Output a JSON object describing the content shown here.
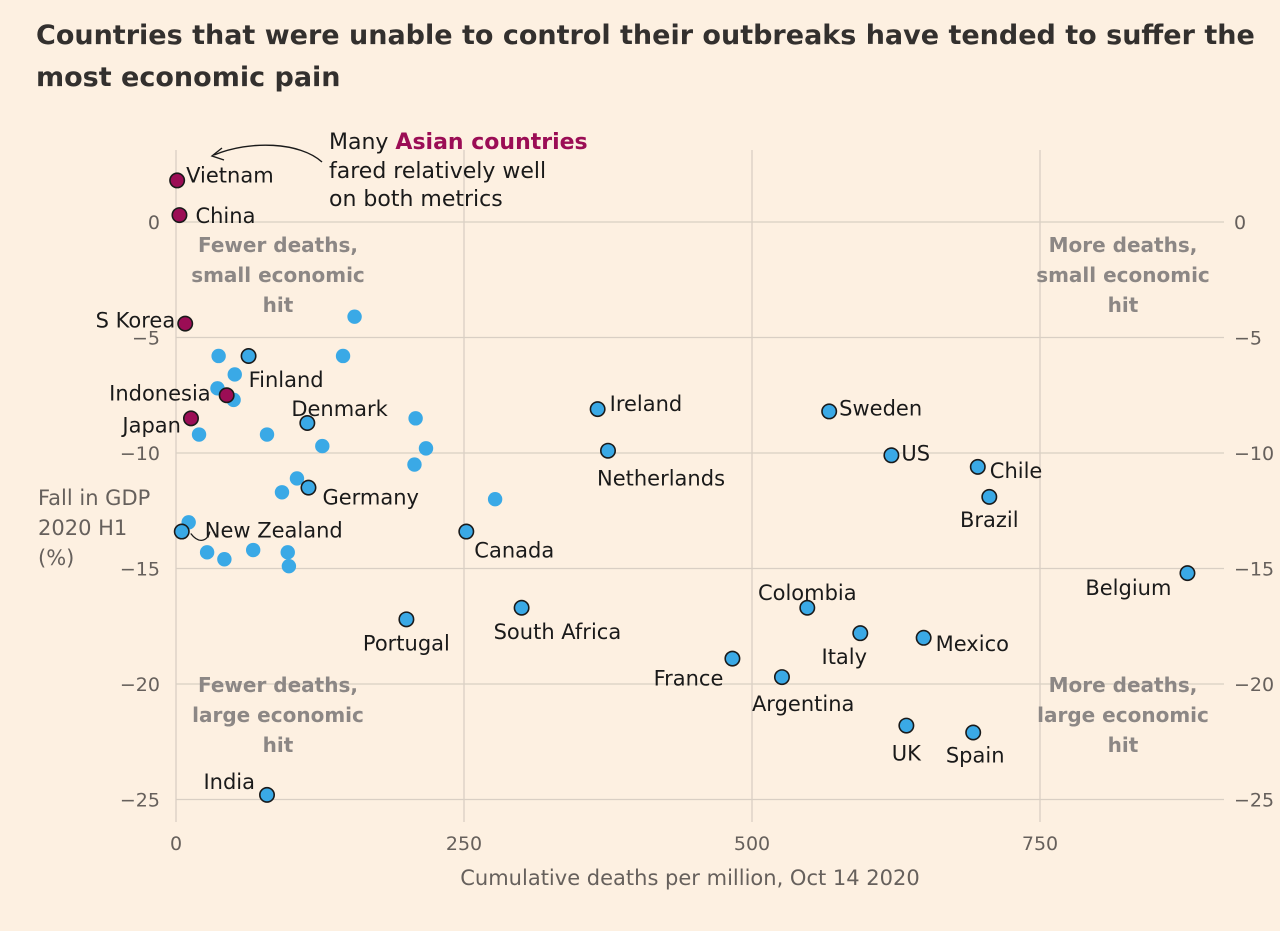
{
  "chart_data": {
    "type": "scatter",
    "title": "Countries that were unable to control their outbreaks have tended to suffer the most economic pain",
    "title_lines": [
      "Countries that were unable to control their outbreaks have tended to suffer the",
      "most economic pain"
    ],
    "xlabel": "Cumulative deaths per million, Oct 14 2020",
    "ylabel_lines": [
      "Fall in GDP",
      "2020 H1",
      "(%)"
    ],
    "xlim": [
      0,
      900
    ],
    "ylim": [
      -26,
      3
    ],
    "xticks": [
      0,
      250,
      500,
      750
    ],
    "yticks": [
      0,
      -5,
      -10,
      -15,
      -20,
      -25
    ],
    "grid": true,
    "colors": {
      "asia": "#9b0d55",
      "other": "#3aa9e6",
      "outline": "#1a1a1a",
      "background": "#fdf0e1",
      "grid": "#d9cfc4"
    },
    "series": [
      {
        "name": "Asian countries",
        "points": [
          {
            "label": "Vietnam",
            "x": 1,
            "y": 1.8
          },
          {
            "label": "China",
            "x": 3,
            "y": 0.3
          },
          {
            "label": "S Korea",
            "x": 8,
            "y": -4.4
          },
          {
            "label": "Indonesia",
            "x": 44,
            "y": -7.5
          },
          {
            "label": "Japan",
            "x": 13,
            "y": -8.5
          }
        ]
      },
      {
        "name": "labelled",
        "points": [
          {
            "label": "Finland",
            "x": 63,
            "y": -5.8
          },
          {
            "label": "Denmark",
            "x": 114,
            "y": -8.7
          },
          {
            "label": "Germany",
            "x": 115,
            "y": -11.5
          },
          {
            "label": "New Zealand",
            "x": 5,
            "y": -13.4
          },
          {
            "label": "India",
            "x": 79,
            "y": -24.8
          },
          {
            "label": "Portugal",
            "x": 200,
            "y": -17.2
          },
          {
            "label": "Canada",
            "x": 252,
            "y": -13.4
          },
          {
            "label": "South Africa",
            "x": 300,
            "y": -16.7
          },
          {
            "label": "Ireland",
            "x": 366,
            "y": -8.1
          },
          {
            "label": "Netherlands",
            "x": 375,
            "y": -9.9
          },
          {
            "label": "France",
            "x": 483,
            "y": -18.9
          },
          {
            "label": "Argentina",
            "x": 526,
            "y": -19.7
          },
          {
            "label": "Colombia",
            "x": 548,
            "y": -16.7
          },
          {
            "label": "Sweden",
            "x": 567,
            "y": -8.2
          },
          {
            "label": "Italy",
            "x": 594,
            "y": -17.8
          },
          {
            "label": "US",
            "x": 621,
            "y": -10.1
          },
          {
            "label": "UK",
            "x": 634,
            "y": -21.8
          },
          {
            "label": "Mexico",
            "x": 649,
            "y": -18.0
          },
          {
            "label": "Spain",
            "x": 692,
            "y": -22.1
          },
          {
            "label": "Chile",
            "x": 696,
            "y": -10.6
          },
          {
            "label": "Brazil",
            "x": 706,
            "y": -11.9
          },
          {
            "label": "Belgium",
            "x": 878,
            "y": -15.2
          }
        ]
      },
      {
        "name": "unlabelled",
        "points": [
          {
            "x": 155,
            "y": -4.1
          },
          {
            "x": 37,
            "y": -5.8
          },
          {
            "x": 145,
            "y": -5.8
          },
          {
            "x": 51,
            "y": -6.6
          },
          {
            "x": 36,
            "y": -7.2
          },
          {
            "x": 50,
            "y": -7.7
          },
          {
            "x": 20,
            "y": -9.2
          },
          {
            "x": 79,
            "y": -9.2
          },
          {
            "x": 208,
            "y": -8.5
          },
          {
            "x": 127,
            "y": -9.7
          },
          {
            "x": 217,
            "y": -9.8
          },
          {
            "x": 207,
            "y": -10.5
          },
          {
            "x": 105,
            "y": -11.1
          },
          {
            "x": 92,
            "y": -11.7
          },
          {
            "x": 277,
            "y": -12.0
          },
          {
            "x": 11,
            "y": -13.0
          },
          {
            "x": 27,
            "y": -14.3
          },
          {
            "x": 42,
            "y": -14.6
          },
          {
            "x": 67,
            "y": -14.2
          },
          {
            "x": 97,
            "y": -14.3
          },
          {
            "x": 98,
            "y": -14.9
          }
        ]
      }
    ],
    "quadrant_labels": [
      {
        "text_lines": [
          "Fewer deaths,",
          "small economic",
          "hit"
        ],
        "position": "top-left"
      },
      {
        "text_lines": [
          "More deaths,",
          "small economic",
          "hit"
        ],
        "position": "top-right"
      },
      {
        "text_lines": [
          "Fewer deaths,",
          "large economic",
          "hit"
        ],
        "position": "bottom-left"
      },
      {
        "text_lines": [
          "More deaths,",
          "large economic",
          "hit"
        ],
        "position": "bottom-right"
      }
    ],
    "annotation": {
      "prefix": "Many ",
      "highlight": "Asian countries",
      "lines": [
        "fared relatively well",
        "on both metrics"
      ],
      "points_to": "Vietnam"
    }
  }
}
